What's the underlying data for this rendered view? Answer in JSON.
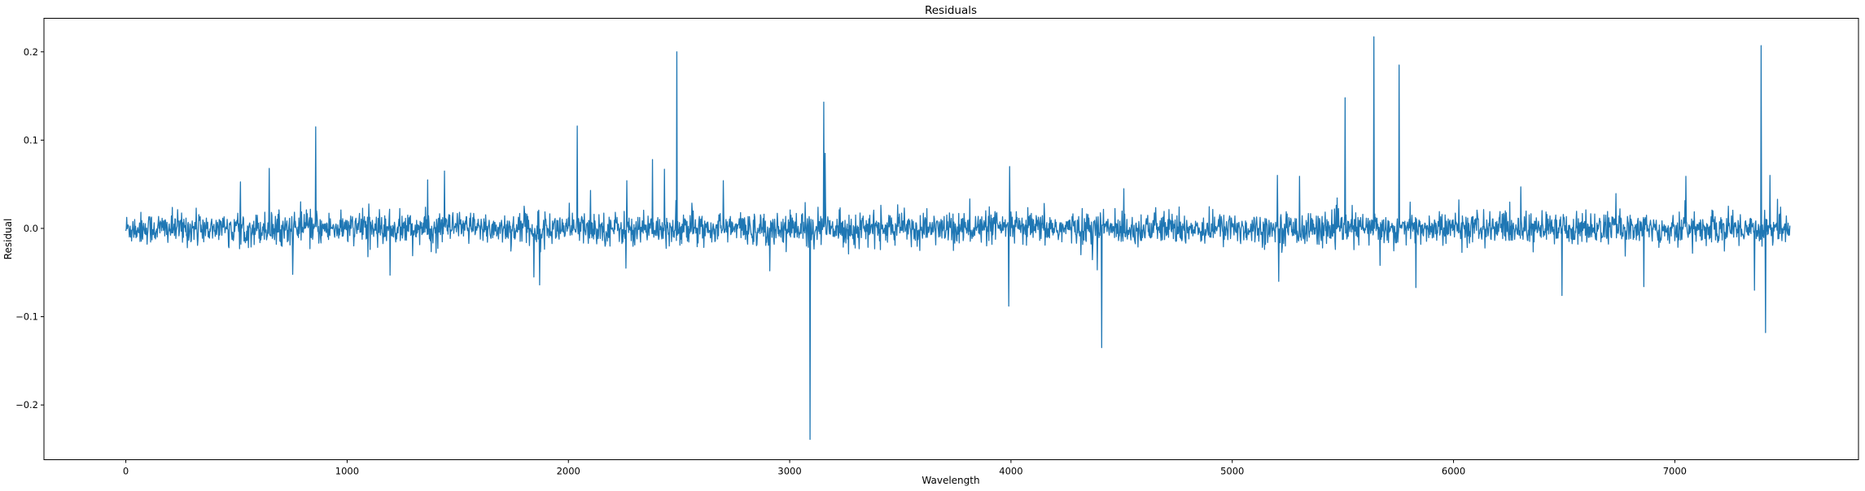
{
  "chart_data": {
    "type": "line",
    "title": "Residuals",
    "xlabel": "Wavelength",
    "ylabel": "Residual",
    "xlim": [
      -370,
      7830
    ],
    "ylim": [
      -0.262,
      0.238
    ],
    "xticks": [
      0,
      1000,
      2000,
      3000,
      4000,
      5000,
      6000,
      7000
    ],
    "xtick_labels": [
      "0",
      "1000",
      "2000",
      "3000",
      "4000",
      "5000",
      "6000",
      "7000"
    ],
    "yticks": [
      -0.2,
      -0.1,
      0.0,
      0.1,
      0.2
    ],
    "ytick_labels": [
      "−0.2",
      "−0.1",
      "0.0",
      "0.1",
      "0.2"
    ],
    "grid": false,
    "legend": "none",
    "series": [
      {
        "color": "#1f77b4",
        "x_range": [
          0,
          7520
        ],
        "baseline_noise_std": 0.009,
        "spikes": [
          {
            "x": 648,
            "y": 0.068
          },
          {
            "x": 755,
            "y": -0.052
          },
          {
            "x": 858,
            "y": 0.115
          },
          {
            "x": 1195,
            "y": -0.053
          },
          {
            "x": 1365,
            "y": 0.055
          },
          {
            "x": 1440,
            "y": 0.065
          },
          {
            "x": 1845,
            "y": -0.055
          },
          {
            "x": 1870,
            "y": -0.064
          },
          {
            "x": 2040,
            "y": 0.116
          },
          {
            "x": 2100,
            "y": 0.043
          },
          {
            "x": 2265,
            "y": 0.054
          },
          {
            "x": 2260,
            "y": -0.045
          },
          {
            "x": 2380,
            "y": 0.078
          },
          {
            "x": 2435,
            "y": 0.067
          },
          {
            "x": 2490,
            "y": 0.2
          },
          {
            "x": 2700,
            "y": 0.054
          },
          {
            "x": 2910,
            "y": -0.048
          },
          {
            "x": 3093,
            "y": -0.239
          },
          {
            "x": 3155,
            "y": 0.143
          },
          {
            "x": 3160,
            "y": 0.085
          },
          {
            "x": 3990,
            "y": -0.088
          },
          {
            "x": 3995,
            "y": 0.07
          },
          {
            "x": 4410,
            "y": -0.135
          },
          {
            "x": 4510,
            "y": 0.045
          },
          {
            "x": 5205,
            "y": 0.06
          },
          {
            "x": 5210,
            "y": -0.06
          },
          {
            "x": 5305,
            "y": 0.059
          },
          {
            "x": 5510,
            "y": 0.148
          },
          {
            "x": 5640,
            "y": 0.217
          },
          {
            "x": 5755,
            "y": 0.185
          },
          {
            "x": 5830,
            "y": -0.067
          },
          {
            "x": 6305,
            "y": 0.047
          },
          {
            "x": 6490,
            "y": -0.076
          },
          {
            "x": 6860,
            "y": -0.066
          },
          {
            "x": 7050,
            "y": 0.059
          },
          {
            "x": 7390,
            "y": 0.207
          },
          {
            "x": 7410,
            "y": -0.118
          },
          {
            "x": 7360,
            "y": -0.07
          },
          {
            "x": 7430,
            "y": 0.06
          }
        ]
      }
    ]
  }
}
